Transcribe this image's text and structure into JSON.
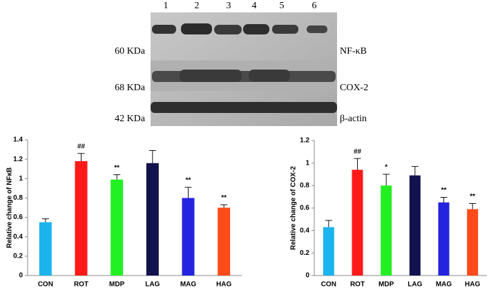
{
  "blot": {
    "lanes": [
      "1",
      "2",
      "3",
      "4",
      "5",
      "6"
    ],
    "rows": [
      {
        "weight": "60 KDa",
        "protein": "NF-κB"
      },
      {
        "weight": "68 KDa",
        "protein": "COX-2"
      },
      {
        "weight": "42 KDa",
        "protein": "β-actin"
      }
    ]
  },
  "chart_data": [
    {
      "type": "bar",
      "y_label": "Relative change of NFκB",
      "categories": [
        "CON",
        "ROT",
        "MDP",
        "LAG",
        "MAG",
        "HAG"
      ],
      "values": [
        0.55,
        1.18,
        0.99,
        1.16,
        0.8,
        0.7
      ],
      "errors": [
        0.035,
        0.08,
        0.05,
        0.13,
        0.11,
        0.03
      ],
      "annotations": [
        null,
        "##",
        "**",
        null,
        "**",
        "**"
      ],
      "colors": [
        "#1ab4ee",
        "#ff1a1a",
        "#22f022",
        "#12124e",
        "#2424e0",
        "#ff4a1a"
      ],
      "ylim": [
        0,
        1.4
      ],
      "yticks": [
        0,
        0.2,
        0.4,
        0.6,
        0.8,
        1,
        1.2,
        1.4
      ]
    },
    {
      "type": "bar",
      "y_label": "Relative change of COX-2",
      "categories": [
        "CON",
        "ROT",
        "MDP",
        "LAG",
        "MAG",
        "HAG"
      ],
      "values": [
        0.43,
        0.94,
        0.8,
        0.89,
        0.65,
        0.59
      ],
      "errors": [
        0.06,
        0.1,
        0.1,
        0.08,
        0.045,
        0.05
      ],
      "annotations": [
        null,
        "##",
        "*",
        null,
        "**",
        "**"
      ],
      "colors": [
        "#1ab4ee",
        "#ff1a1a",
        "#22f022",
        "#12124e",
        "#2424e0",
        "#ff4a1a"
      ],
      "ylim": [
        0,
        1.2
      ],
      "yticks": [
        0,
        0.2,
        0.4,
        0.6,
        0.8,
        1,
        1.2
      ]
    }
  ]
}
